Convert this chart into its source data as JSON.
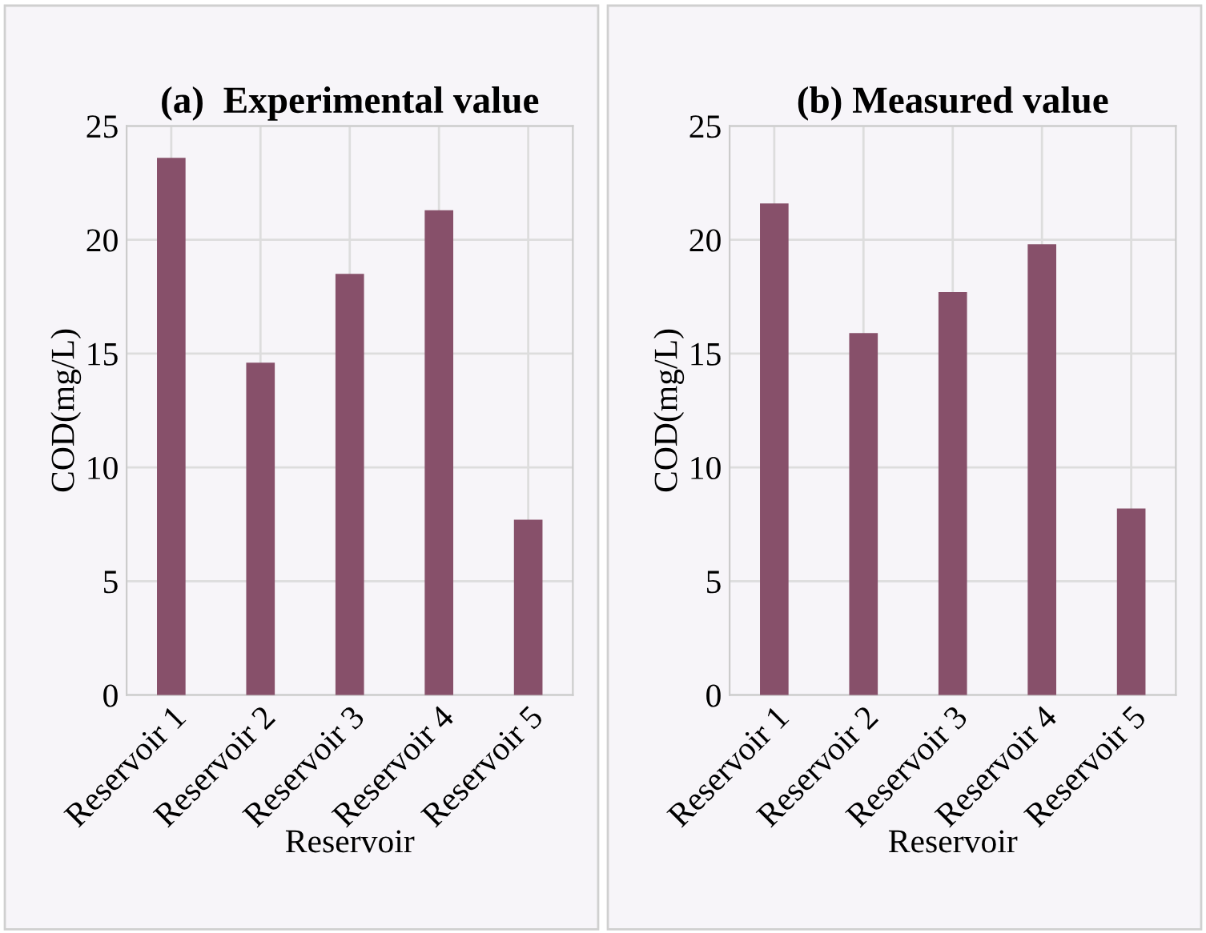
{
  "chart_data": [
    {
      "type": "bar",
      "title": "(a)  Experimental value",
      "xlabel": "Reservoir",
      "ylabel": "COD(mg/L)",
      "categories": [
        "Reservoir 1",
        "Reservoir 2",
        "Reservoir 3",
        "Reservoir 4",
        "Reservoir 5"
      ],
      "values": [
        23.6,
        14.6,
        18.5,
        21.3,
        7.7
      ],
      "color": "#87506a",
      "ylim": [
        0,
        25
      ],
      "yticks": [
        0,
        5,
        10,
        15,
        20,
        25
      ],
      "grid": true
    },
    {
      "type": "bar",
      "title": "(b) Measured value",
      "xlabel": "Reservoir",
      "ylabel": "COD(mg/L)",
      "categories": [
        "Reservoir 1",
        "Reservoir 2",
        "Reservoir 3",
        "Reservoir 4",
        "Reservoir 5"
      ],
      "values": [
        21.6,
        15.9,
        17.7,
        19.8,
        8.2
      ],
      "color": "#87506a",
      "ylim": [
        0,
        25
      ],
      "yticks": [
        0,
        5,
        10,
        15,
        20,
        25
      ],
      "grid": true
    }
  ]
}
